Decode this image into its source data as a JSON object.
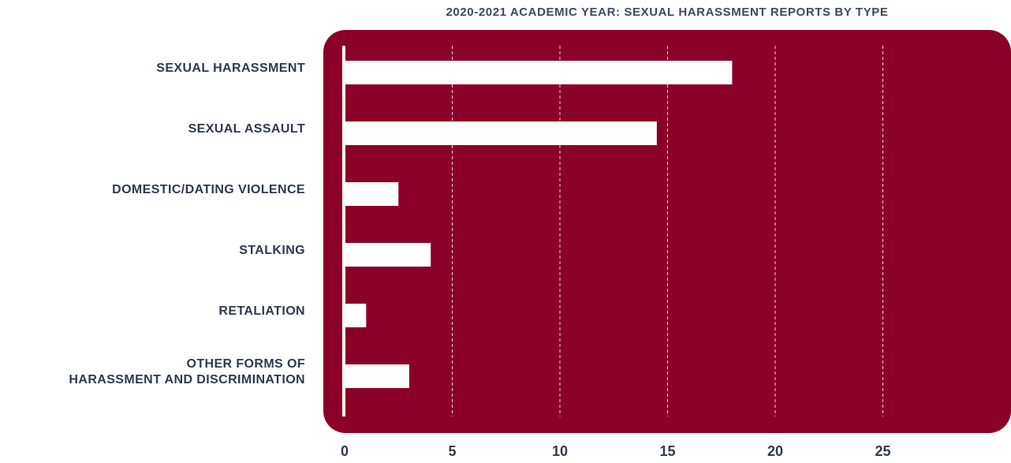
{
  "colors": {
    "panel": "#8b0028",
    "bar": "#ffffff",
    "text": "#2e3a4e",
    "title": "#3d4a5c",
    "grid": "#f2c9d3"
  },
  "chart_data": {
    "type": "bar",
    "orientation": "horizontal",
    "title": "2020-2021 ACADEMIC YEAR: SEXUAL HARASSMENT REPORTS BY TYPE",
    "xlabel": "",
    "ylabel": "",
    "categories": [
      "SEXUAL HARASSMENT",
      "SEXUAL ASSAULT",
      "DOMESTIC/DATING VIOLENCE",
      "STALKING",
      "RETALIATION",
      "OTHER FORMS OF\nHARASSMENT AND DISCRIMINATION"
    ],
    "values": [
      18,
      14.5,
      2.5,
      4,
      1,
      3
    ],
    "xlim": [
      0,
      30
    ],
    "xticks": [
      0,
      5,
      10,
      15,
      20,
      25
    ],
    "grid": "vertical-dashed",
    "legend": "none"
  }
}
